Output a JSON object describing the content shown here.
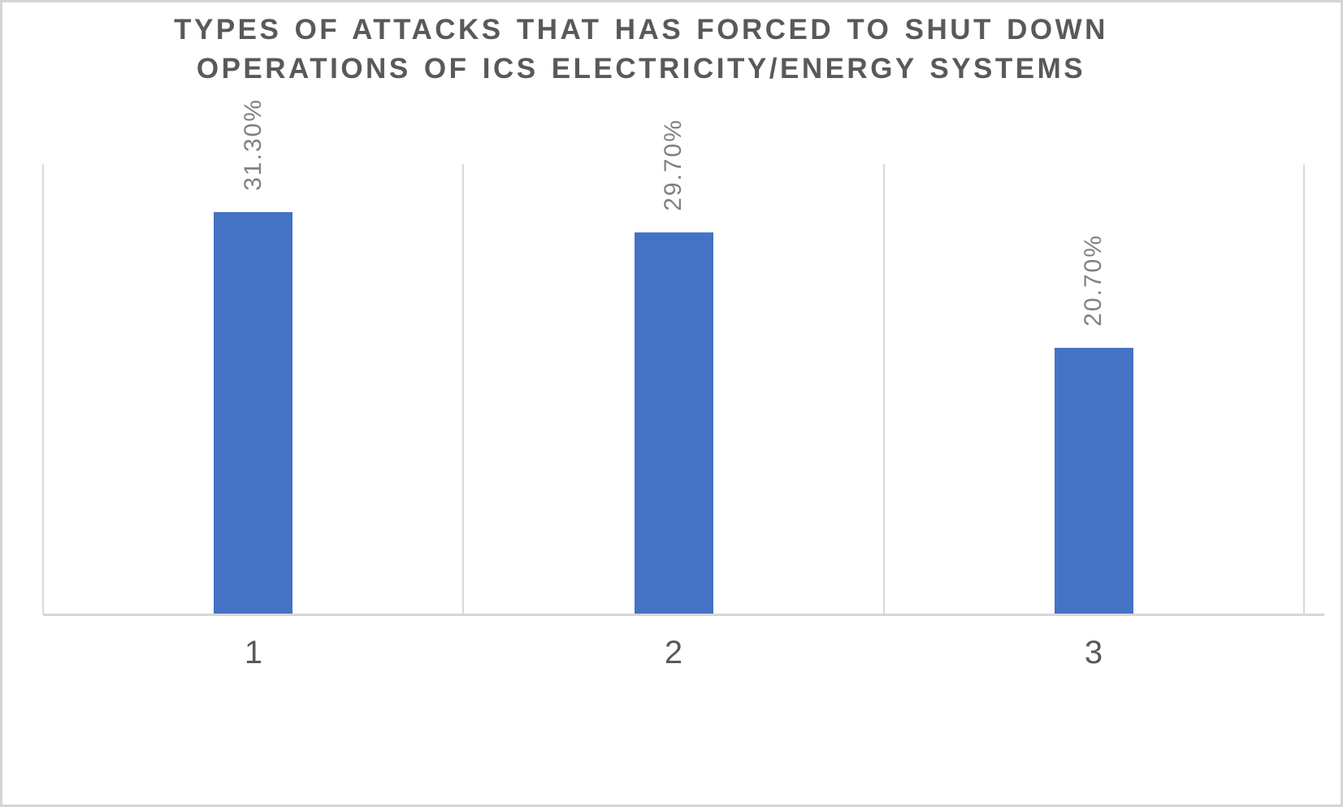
{
  "window": {
    "background_color": "#ffffff",
    "border_color": "#d4d4d4"
  },
  "chart_data": {
    "type": "bar",
    "title": "TYPES OF ATTACKS THAT HAS FORCED TO SHUT DOWN OPERATIONS OF ICS ELECTRICITY/ENERGY SYSTEMS",
    "title_lines": [
      "TYPES OF ATTACKS THAT HAS FORCED TO SHUT DOWN",
      "OPERATIONS OF ICS ELECTRICITY/ENERGY SYSTEMS"
    ],
    "categories": [
      "1",
      "2",
      "3"
    ],
    "values": [
      31.3,
      29.7,
      20.7
    ],
    "data_labels": [
      "31.30%",
      "29.70%",
      "20.70%"
    ],
    "data_label_rotation_deg": -90,
    "xlabel": "",
    "ylabel": "",
    "ylim": [
      0,
      35
    ],
    "y_axis_labels_visible": false,
    "legend": "none",
    "grid": "vertical-category-boundaries-only",
    "bar_color": "#4472c4",
    "gridline_color": "#d9d9d9",
    "axis_line_color": "#d6d6d6",
    "title_color": "#595959",
    "data_label_color": "#808080",
    "tick_label_color": "#595959"
  }
}
